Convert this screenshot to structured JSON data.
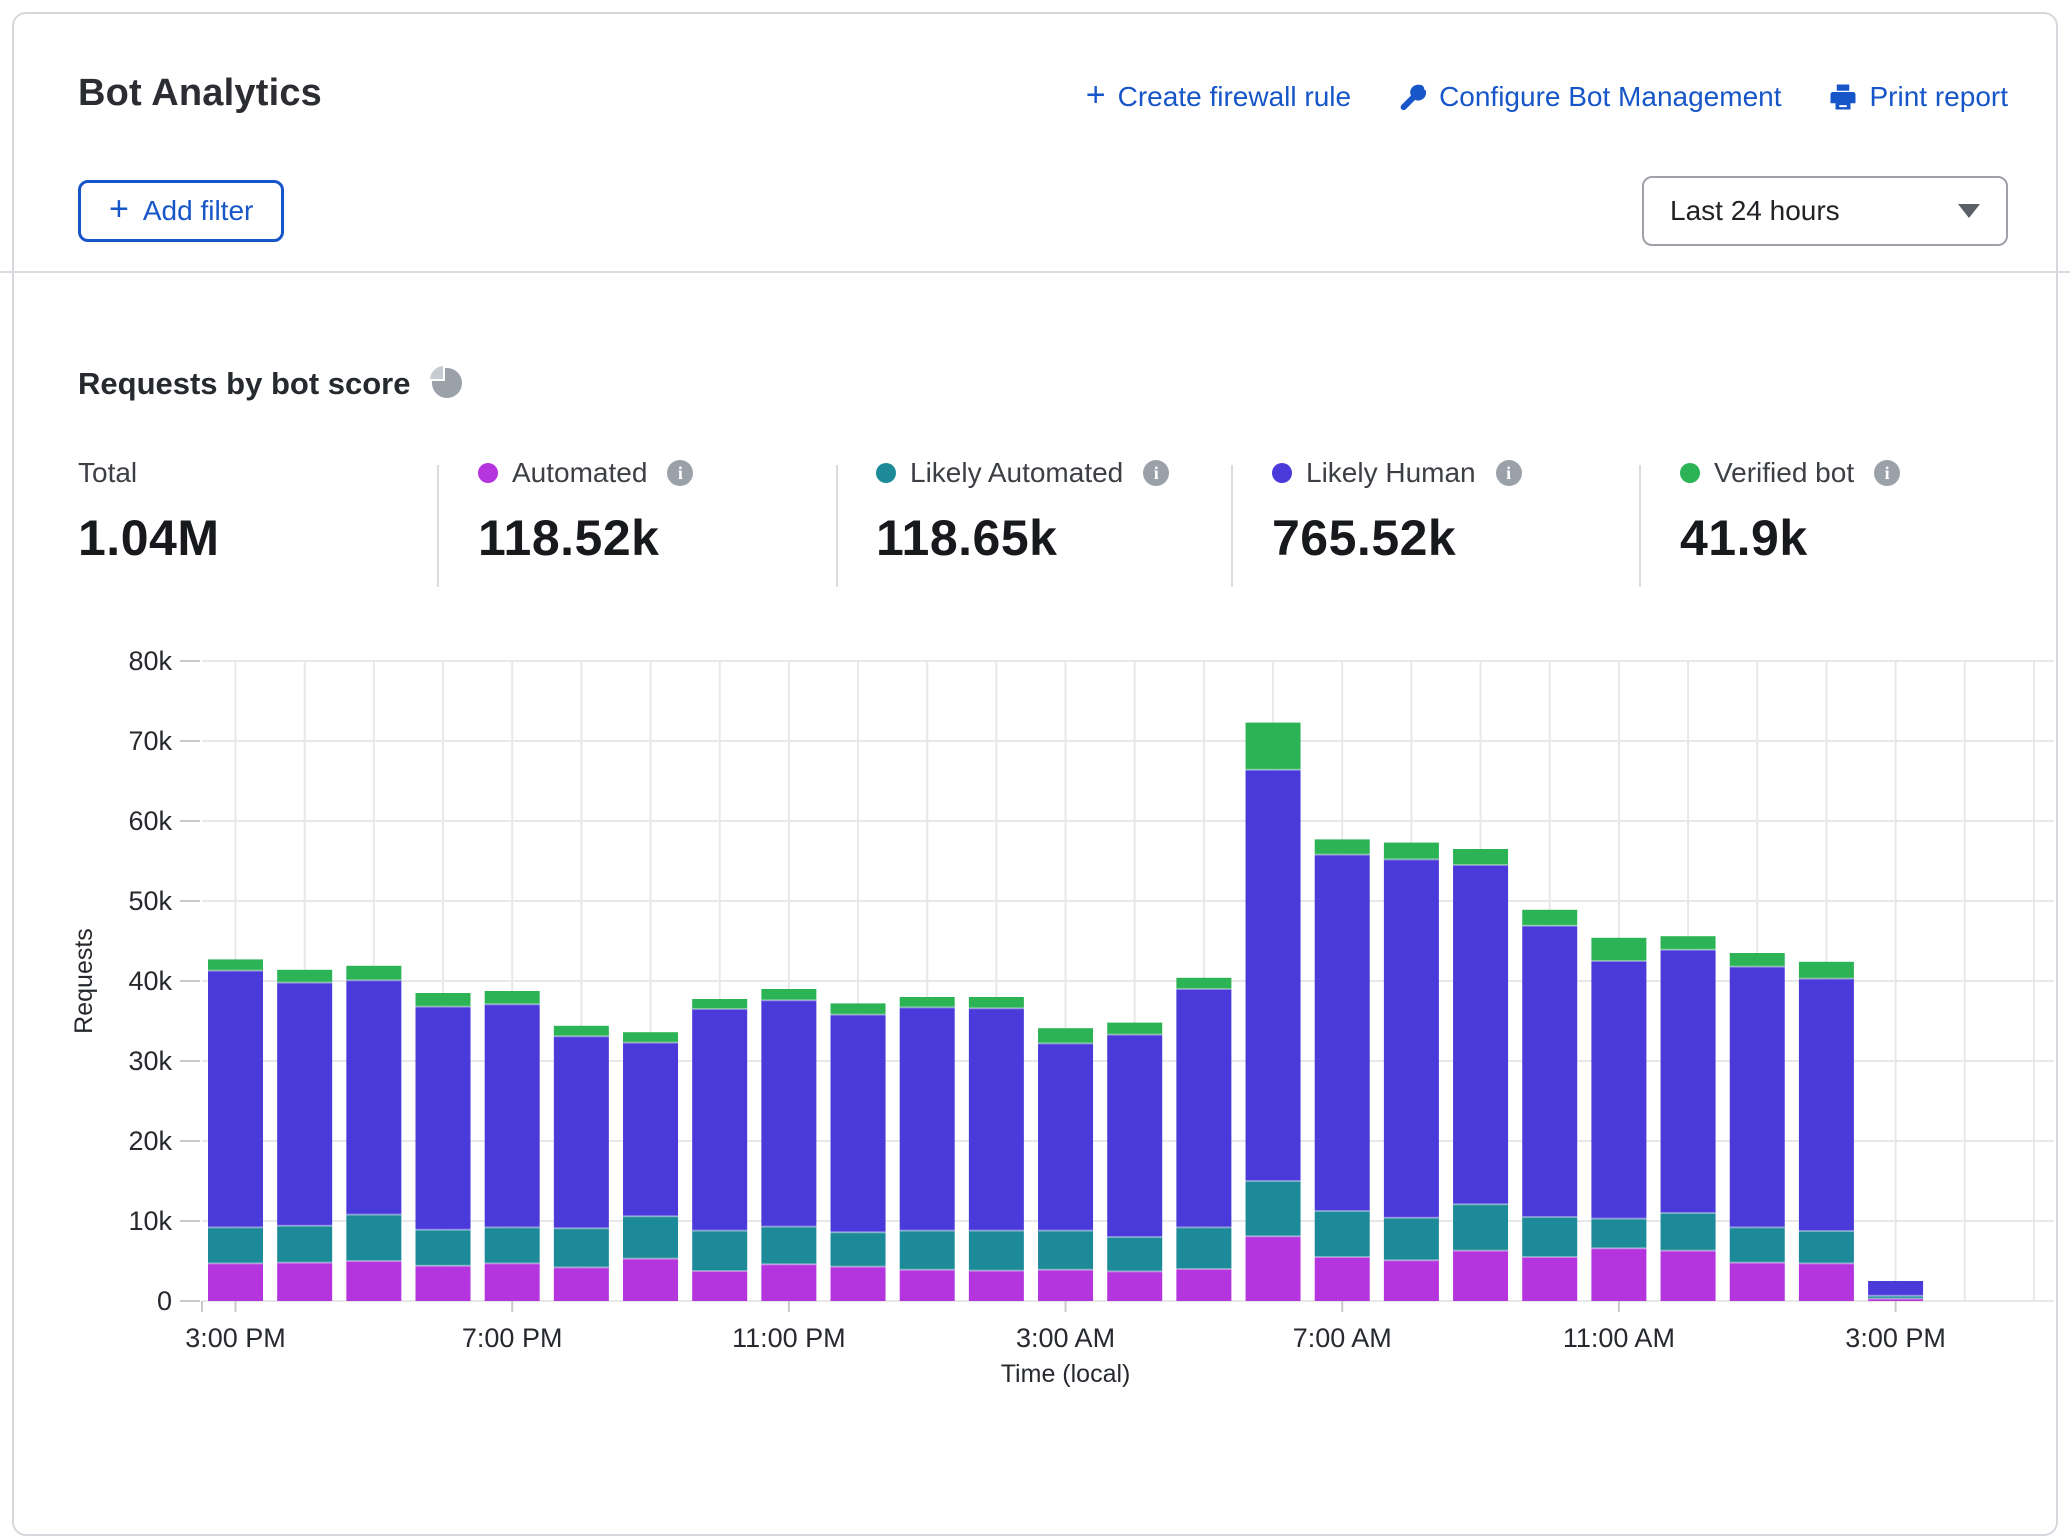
{
  "header": {
    "title": "Bot Analytics",
    "actions": [
      {
        "icon": "plus-icon",
        "label": "Create firewall rule"
      },
      {
        "icon": "wrench-icon",
        "label": "Configure Bot Management"
      },
      {
        "icon": "printer-icon",
        "label": "Print report"
      }
    ],
    "add_filter_label": "Add filter",
    "time_range": "Last 24 hours"
  },
  "icons": {
    "plus": "+"
  },
  "section": {
    "title": "Requests by bot score"
  },
  "stats": {
    "total": {
      "label": "Total",
      "value": "1.04M"
    },
    "series": [
      {
        "label": "Automated",
        "value": "118.52k",
        "color": "#B434DE"
      },
      {
        "label": "Likely Automated",
        "value": "118.65k",
        "color": "#1D8A99"
      },
      {
        "label": "Likely Human",
        "value": "765.52k",
        "color": "#4A3AD9"
      },
      {
        "label": "Verified bot",
        "value": "41.9k",
        "color": "#2BB356"
      }
    ]
  },
  "chart_data": {
    "type": "bar",
    "stacked": true,
    "title": "Requests by bot score",
    "xlabel": "Time (local)",
    "ylabel": "Requests",
    "ylim": [
      0,
      80000
    ],
    "grid": true,
    "legend_position": "top-stats-row",
    "y_tick_labels": [
      "0",
      "10k",
      "20k",
      "30k",
      "40k",
      "50k",
      "60k",
      "70k",
      "80k"
    ],
    "x_tick_indices": [
      0,
      4,
      8,
      12,
      16,
      20,
      24
    ],
    "x_tick_labels": [
      "3:00 PM",
      "7:00 PM",
      "11:00 PM",
      "3:00 AM",
      "7:00 AM",
      "11:00 AM",
      "3:00 PM"
    ],
    "categories": [
      "3:00 PM",
      "4:00 PM",
      "5:00 PM",
      "6:00 PM",
      "7:00 PM",
      "8:00 PM",
      "9:00 PM",
      "10:00 PM",
      "11:00 PM",
      "12:00 AM",
      "1:00 AM",
      "2:00 AM",
      "3:00 AM",
      "4:00 AM",
      "5:00 AM",
      "6:00 AM",
      "7:00 AM",
      "8:00 AM",
      "9:00 AM",
      "10:00 AM",
      "11:00 AM",
      "12:00 PM",
      "1:00 PM",
      "2:00 PM",
      "3:00 PM"
    ],
    "unit": "thousands of requests",
    "series": [
      {
        "name": "Automated",
        "color": "#B434DE",
        "values_k": [
          4.7,
          4.8,
          5.0,
          4.4,
          4.7,
          4.2,
          5.3,
          3.75,
          4.6,
          4.3,
          3.9,
          3.8,
          3.9,
          3.7,
          4.0,
          8.1,
          5.5,
          5.1,
          6.3,
          5.5,
          6.6,
          6.3,
          4.8,
          4.7,
          0.3
        ]
      },
      {
        "name": "Likely Automated",
        "color": "#1D8A99",
        "values_k": [
          4.5,
          4.6,
          5.8,
          4.5,
          4.5,
          4.9,
          5.3,
          5.05,
          4.7,
          4.3,
          4.9,
          5.0,
          4.9,
          4.3,
          5.2,
          6.9,
          5.75,
          5.3,
          5.8,
          5.0,
          3.7,
          4.7,
          4.4,
          4.05,
          0.35
        ]
      },
      {
        "name": "Likely Human",
        "color": "#4A3AD9",
        "values_k": [
          32.1,
          30.4,
          29.3,
          27.9,
          27.9,
          24.0,
          21.7,
          27.7,
          28.3,
          27.2,
          27.9,
          27.8,
          23.4,
          25.3,
          29.8,
          51.4,
          44.55,
          44.8,
          42.4,
          36.4,
          32.2,
          32.9,
          32.6,
          31.55,
          1.85
        ]
      },
      {
        "name": "Verified bot",
        "color": "#2BB356",
        "values_k": [
          1.4,
          1.6,
          1.8,
          1.7,
          1.65,
          1.3,
          1.3,
          1.25,
          1.4,
          1.4,
          1.3,
          1.4,
          1.9,
          1.5,
          1.4,
          5.9,
          1.9,
          2.1,
          2.0,
          2.0,
          2.9,
          1.7,
          1.7,
          2.1,
          0
        ]
      }
    ]
  }
}
